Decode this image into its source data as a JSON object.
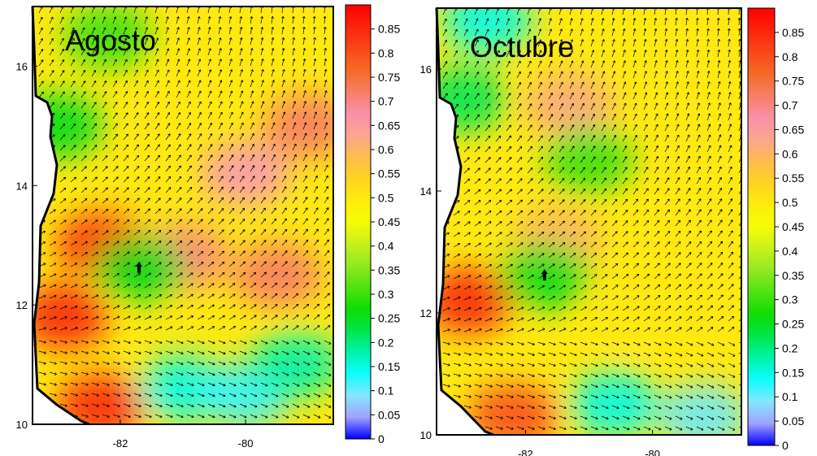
{
  "chart_data": [
    {
      "type": "heatmap",
      "title": "Agosto",
      "xlabel": "",
      "ylabel": "",
      "xlim": [
        -83.4,
        -78.6
      ],
      "ylim": [
        10,
        17
      ],
      "x_ticks": [
        "-82",
        "-80"
      ],
      "y_ticks": [
        "10",
        "12",
        "14",
        "16"
      ],
      "colorbar": {
        "min": 0,
        "max": 0.9,
        "ticks": [
          "0",
          "0.05",
          "0.1",
          "0.15",
          "0.2",
          "0.25",
          "0.3",
          "0.35",
          "0.4",
          "0.45",
          "0.5",
          "0.55",
          "0.6",
          "0.65",
          "0.7",
          "0.75",
          "0.8",
          "0.85"
        ]
      },
      "features": [
        {
          "lon": -82.9,
          "lat": 11.8,
          "value": 0.85
        },
        {
          "lon": -82.3,
          "lat": 13.0,
          "value": 0.85
        },
        {
          "lon": -82.3,
          "lat": 10.3,
          "value": 0.85
        },
        {
          "lon": -81.0,
          "lat": 12.8,
          "value": 0.7
        },
        {
          "lon": -79.5,
          "lat": 12.5,
          "value": 0.72
        },
        {
          "lon": -79.0,
          "lat": 15.0,
          "value": 0.72
        },
        {
          "lon": -80.0,
          "lat": 14.2,
          "value": 0.65
        },
        {
          "lon": -81.0,
          "lat": 10.6,
          "value": 0.15
        },
        {
          "lon": -80.0,
          "lat": 10.5,
          "value": 0.12
        },
        {
          "lon": -79.2,
          "lat": 11.0,
          "value": 0.18
        },
        {
          "lon": -82.2,
          "lat": 16.5,
          "value": 0.3
        },
        {
          "lon": -83.0,
          "lat": 15.0,
          "value": 0.25
        },
        {
          "lon": -81.7,
          "lat": 12.6,
          "value": 0.25
        }
      ]
    },
    {
      "type": "heatmap",
      "title": "Octubre",
      "xlabel": "",
      "ylabel": "",
      "xlim": [
        -83.4,
        -78.6
      ],
      "ylim": [
        10,
        17
      ],
      "x_ticks": [
        "-82",
        "-80"
      ],
      "y_ticks": [
        "10",
        "12",
        "14",
        "16"
      ],
      "colorbar": {
        "min": 0,
        "max": 0.9,
        "ticks": [
          "0",
          "0.05",
          "0.1",
          "0.15",
          "0.2",
          "0.25",
          "0.3",
          "0.35",
          "0.4",
          "0.45",
          "0.5",
          "0.55",
          "0.6",
          "0.65",
          "0.7",
          "0.75",
          "0.8",
          "0.85"
        ]
      },
      "features": [
        {
          "lon": -82.9,
          "lat": 12.2,
          "value": 0.85
        },
        {
          "lon": -82.2,
          "lat": 10.3,
          "value": 0.8
        },
        {
          "lon": -81.3,
          "lat": 15.4,
          "value": 0.62
        },
        {
          "lon": -81.5,
          "lat": 13.2,
          "value": 0.6
        },
        {
          "lon": -80.2,
          "lat": 12.0,
          "value": 0.5
        },
        {
          "lon": -80.6,
          "lat": 10.5,
          "value": 0.15
        },
        {
          "lon": -79.2,
          "lat": 10.3,
          "value": 0.1
        },
        {
          "lon": -82.6,
          "lat": 16.8,
          "value": 0.15
        },
        {
          "lon": -83.0,
          "lat": 15.5,
          "value": 0.22
        },
        {
          "lon": -81.0,
          "lat": 14.5,
          "value": 0.3
        },
        {
          "lon": -81.7,
          "lat": 12.6,
          "value": 0.25
        }
      ]
    }
  ]
}
